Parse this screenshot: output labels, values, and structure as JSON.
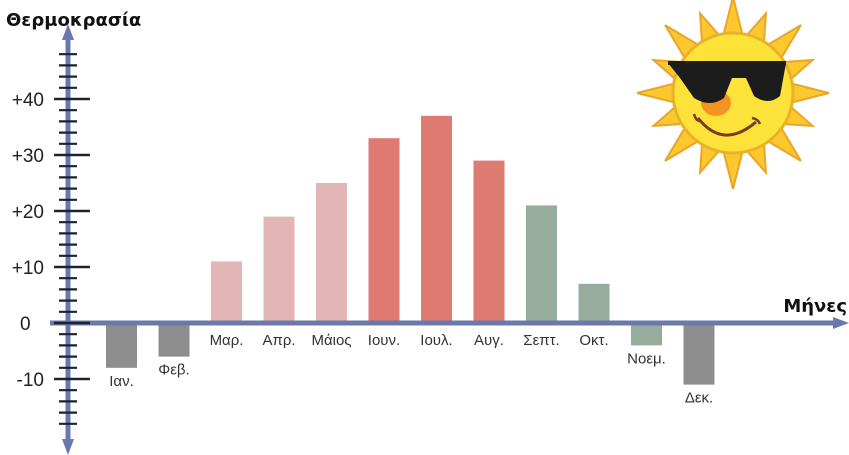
{
  "chart_data": {
    "type": "bar",
    "ylabel": "Θερμοκρασία",
    "xlabel": "Μήνες",
    "categories": [
      "Ιαν.",
      "Φεβ.",
      "Μαρ.",
      "Απρ.",
      "Μάιος",
      "Ιουν.",
      "Ιουλ.",
      "Αυγ.",
      "Σεπτ.",
      "Οκτ.",
      "Νοεμ.",
      "Δεκ."
    ],
    "values": [
      -8,
      -6,
      11,
      19,
      25,
      33,
      37,
      29,
      21,
      7,
      -4,
      -11
    ],
    "colors": [
      "#8e8e8e",
      "#8e8e8e",
      "#e2b6b4",
      "#e2b6b4",
      "#e2b6b4",
      "#dd7a72",
      "#dd7a72",
      "#dd7a72",
      "#96ad9d",
      "#96ad9d",
      "#96ad9d",
      "#8e8e8e"
    ],
    "yticks": [
      {
        "value": 40,
        "label": "+40"
      },
      {
        "value": 30,
        "label": "+30"
      },
      {
        "value": 20,
        "label": "+20"
      },
      {
        "value": 10,
        "label": "+10"
      },
      {
        "value": 0,
        "label": "0"
      },
      {
        "value": -10,
        "label": "-10"
      }
    ],
    "ylim": [
      -23,
      54
    ],
    "grid": false,
    "axis_color": "#6a78ad"
  },
  "decoration": {
    "icon": "sun-with-sunglasses-icon"
  }
}
